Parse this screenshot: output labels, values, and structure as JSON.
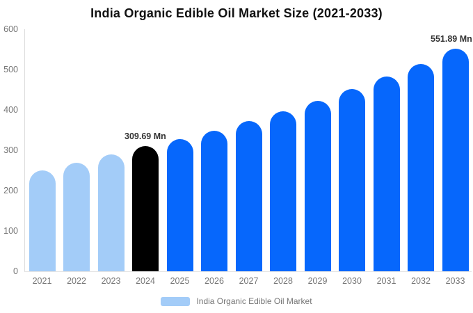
{
  "header": {
    "title": "India Organic Edible Oil Market Size (2021-2033)"
  },
  "legend": {
    "label": "India Organic Edible Oil Market",
    "swatch_color": "#A3CCF8"
  },
  "chart_data": {
    "type": "bar",
    "title": "India Organic Edible Oil Market Size (2021-2033)",
    "unit": "Mn",
    "categories": [
      "2021",
      "2022",
      "2023",
      "2024",
      "2025",
      "2026",
      "2027",
      "2028",
      "2029",
      "2030",
      "2031",
      "2032",
      "2033"
    ],
    "values": [
      250,
      269,
      289,
      309.69,
      328,
      349,
      372,
      397,
      423,
      451,
      482,
      514,
      551.89
    ],
    "point_roles": [
      "historical",
      "historical",
      "historical",
      "base_year",
      "forecast",
      "forecast",
      "forecast",
      "forecast",
      "forecast",
      "forecast",
      "forecast",
      "forecast",
      "forecast"
    ],
    "palette": {
      "historical": "#A3CCF8",
      "base_year": "#000000",
      "forecast": "#0667FC"
    },
    "annotations": [
      {
        "index": 3,
        "text": "309.69 Mn"
      },
      {
        "index": 12,
        "text": "551.89 Mn"
      }
    ],
    "xlabel": "",
    "ylabel": "",
    "ylim": [
      0,
      600
    ],
    "yticks": [
      0,
      100,
      200,
      300,
      400,
      500,
      600
    ],
    "grid": false,
    "legend_position": "bottom",
    "axis_line_color": "#DCDCDC",
    "tick_text_color": "#757575",
    "annotation_text_color": "#333333"
  }
}
